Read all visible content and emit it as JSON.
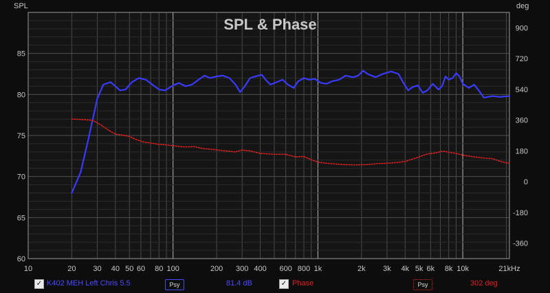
{
  "chart_data": {
    "type": "line",
    "title": "SPL & Phase",
    "ylabel": "SPL",
    "y2label": "deg",
    "xscale": "log",
    "xlim": [
      10,
      21000
    ],
    "ylim": [
      60,
      90
    ],
    "y2lim": [
      -450,
      990
    ],
    "x_ticks": [
      {
        "v": 10,
        "label": "10"
      },
      {
        "v": 20,
        "label": "20"
      },
      {
        "v": 30,
        "label": "30"
      },
      {
        "v": 40,
        "label": "40"
      },
      {
        "v": 50,
        "label": "50"
      },
      {
        "v": 60,
        "label": "60"
      },
      {
        "v": 80,
        "label": "80"
      },
      {
        "v": 100,
        "label": "100"
      },
      {
        "v": 200,
        "label": "200"
      },
      {
        "v": 300,
        "label": "300"
      },
      {
        "v": 400,
        "label": "400"
      },
      {
        "v": 600,
        "label": "600"
      },
      {
        "v": 800,
        "label": "800"
      },
      {
        "v": 1000,
        "label": "1k"
      },
      {
        "v": 2000,
        "label": "2k"
      },
      {
        "v": 3000,
        "label": "3k"
      },
      {
        "v": 4000,
        "label": "4k"
      },
      {
        "v": 5000,
        "label": "5k"
      },
      {
        "v": 6000,
        "label": "6k"
      },
      {
        "v": 8000,
        "label": "8k"
      },
      {
        "v": 10000,
        "label": "10k"
      },
      {
        "v": 21000,
        "label": "21kHz"
      }
    ],
    "y_ticks": [
      60,
      65,
      70,
      75,
      80,
      85
    ],
    "y2_ticks": [
      -360,
      -180,
      0,
      180,
      360,
      540,
      720,
      900
    ],
    "grid": true,
    "series": [
      {
        "name": "K402 MEH Left Chris 5.5",
        "axis": "left",
        "color": "#3a3aff",
        "style": "solid",
        "points": [
          [
            20,
            68
          ],
          [
            23,
            70.5
          ],
          [
            26,
            74.5
          ],
          [
            30,
            79.5
          ],
          [
            33,
            81.2
          ],
          [
            37,
            81.5
          ],
          [
            40,
            81
          ],
          [
            43,
            80.5
          ],
          [
            47,
            80.6
          ],
          [
            52,
            81.5
          ],
          [
            58,
            82
          ],
          [
            65,
            81.8
          ],
          [
            72,
            81.2
          ],
          [
            80,
            80.6
          ],
          [
            88,
            80.5
          ],
          [
            100,
            81.1
          ],
          [
            110,
            81.4
          ],
          [
            122,
            81
          ],
          [
            135,
            81.2
          ],
          [
            150,
            81.8
          ],
          [
            165,
            82.3
          ],
          [
            180,
            82
          ],
          [
            200,
            82.2
          ],
          [
            220,
            82.3
          ],
          [
            245,
            82
          ],
          [
            270,
            81.2
          ],
          [
            290,
            80.3
          ],
          [
            310,
            80.9
          ],
          [
            340,
            82
          ],
          [
            370,
            82.2
          ],
          [
            410,
            82.4
          ],
          [
            440,
            81.7
          ],
          [
            470,
            81.2
          ],
          [
            520,
            81.5
          ],
          [
            570,
            81.8
          ],
          [
            620,
            81.2
          ],
          [
            680,
            80.8
          ],
          [
            730,
            81.6
          ],
          [
            800,
            82
          ],
          [
            870,
            81.8
          ],
          [
            950,
            81.9
          ],
          [
            1050,
            81.4
          ],
          [
            1150,
            81.3
          ],
          [
            1250,
            81.6
          ],
          [
            1400,
            81.8
          ],
          [
            1550,
            82.3
          ],
          [
            1750,
            82.1
          ],
          [
            1900,
            82.3
          ],
          [
            2050,
            82.9
          ],
          [
            2200,
            82.5
          ],
          [
            2500,
            82.1
          ],
          [
            2800,
            82.5
          ],
          [
            3200,
            82.8
          ],
          [
            3600,
            82.5
          ],
          [
            3900,
            81.4
          ],
          [
            4200,
            80.5
          ],
          [
            4500,
            80.9
          ],
          [
            4900,
            81.1
          ],
          [
            5300,
            80.2
          ],
          [
            5700,
            80.5
          ],
          [
            6200,
            81.3
          ],
          [
            6800,
            80.6
          ],
          [
            7200,
            81
          ],
          [
            7600,
            82.2
          ],
          [
            8000,
            81.8
          ],
          [
            8500,
            82
          ],
          [
            9000,
            82.6
          ],
          [
            9500,
            82.2
          ],
          [
            10000,
            81.3
          ],
          [
            11000,
            80.8
          ],
          [
            12000,
            81.2
          ],
          [
            13000,
            80.4
          ],
          [
            14000,
            79.6
          ],
          [
            16000,
            79.8
          ],
          [
            18000,
            79.7
          ],
          [
            21000,
            79.8
          ]
        ]
      },
      {
        "name": "Phase",
        "axis": "right",
        "color": "#e02020",
        "style": "dotted",
        "points": [
          [
            20,
            366
          ],
          [
            25,
            362
          ],
          [
            28,
            358
          ],
          [
            32,
            330
          ],
          [
            36,
            300
          ],
          [
            40,
            278
          ],
          [
            45,
            272
          ],
          [
            50,
            264
          ],
          [
            55,
            248
          ],
          [
            62,
            233
          ],
          [
            70,
            226
          ],
          [
            80,
            218
          ],
          [
            90,
            215
          ],
          [
            100,
            210
          ],
          [
            120,
            203
          ],
          [
            140,
            205
          ],
          [
            160,
            194
          ],
          [
            190,
            188
          ],
          [
            230,
            180
          ],
          [
            270,
            174
          ],
          [
            300,
            185
          ],
          [
            340,
            180
          ],
          [
            400,
            165
          ],
          [
            500,
            160
          ],
          [
            600,
            160
          ],
          [
            700,
            145
          ],
          [
            800,
            147
          ],
          [
            900,
            128
          ],
          [
            1000,
            114
          ],
          [
            1200,
            106
          ],
          [
            1500,
            100
          ],
          [
            1800,
            98
          ],
          [
            2200,
            100
          ],
          [
            2600,
            106
          ],
          [
            3000,
            108
          ],
          [
            3500,
            112
          ],
          [
            4000,
            118
          ],
          [
            4500,
            132
          ],
          [
            5000,
            145
          ],
          [
            5500,
            158
          ],
          [
            6000,
            165
          ],
          [
            6500,
            168
          ],
          [
            7000,
            176
          ],
          [
            7500,
            178
          ],
          [
            8000,
            172
          ],
          [
            9000,
            165
          ],
          [
            10000,
            155
          ],
          [
            12000,
            145
          ],
          [
            14000,
            138
          ],
          [
            16000,
            135
          ],
          [
            18000,
            120
          ],
          [
            19500,
            112
          ],
          [
            21000,
            108
          ]
        ]
      }
    ]
  },
  "legend": {
    "series1_check": "✓",
    "series1_name": "K402 MEH Left Chris 5.5",
    "series1_button": "Psy",
    "series1_value": "81.4 dB",
    "series2_check": "✓",
    "series2_name": "Phase",
    "series2_button": "Psy",
    "series2_value": "302 deg"
  }
}
